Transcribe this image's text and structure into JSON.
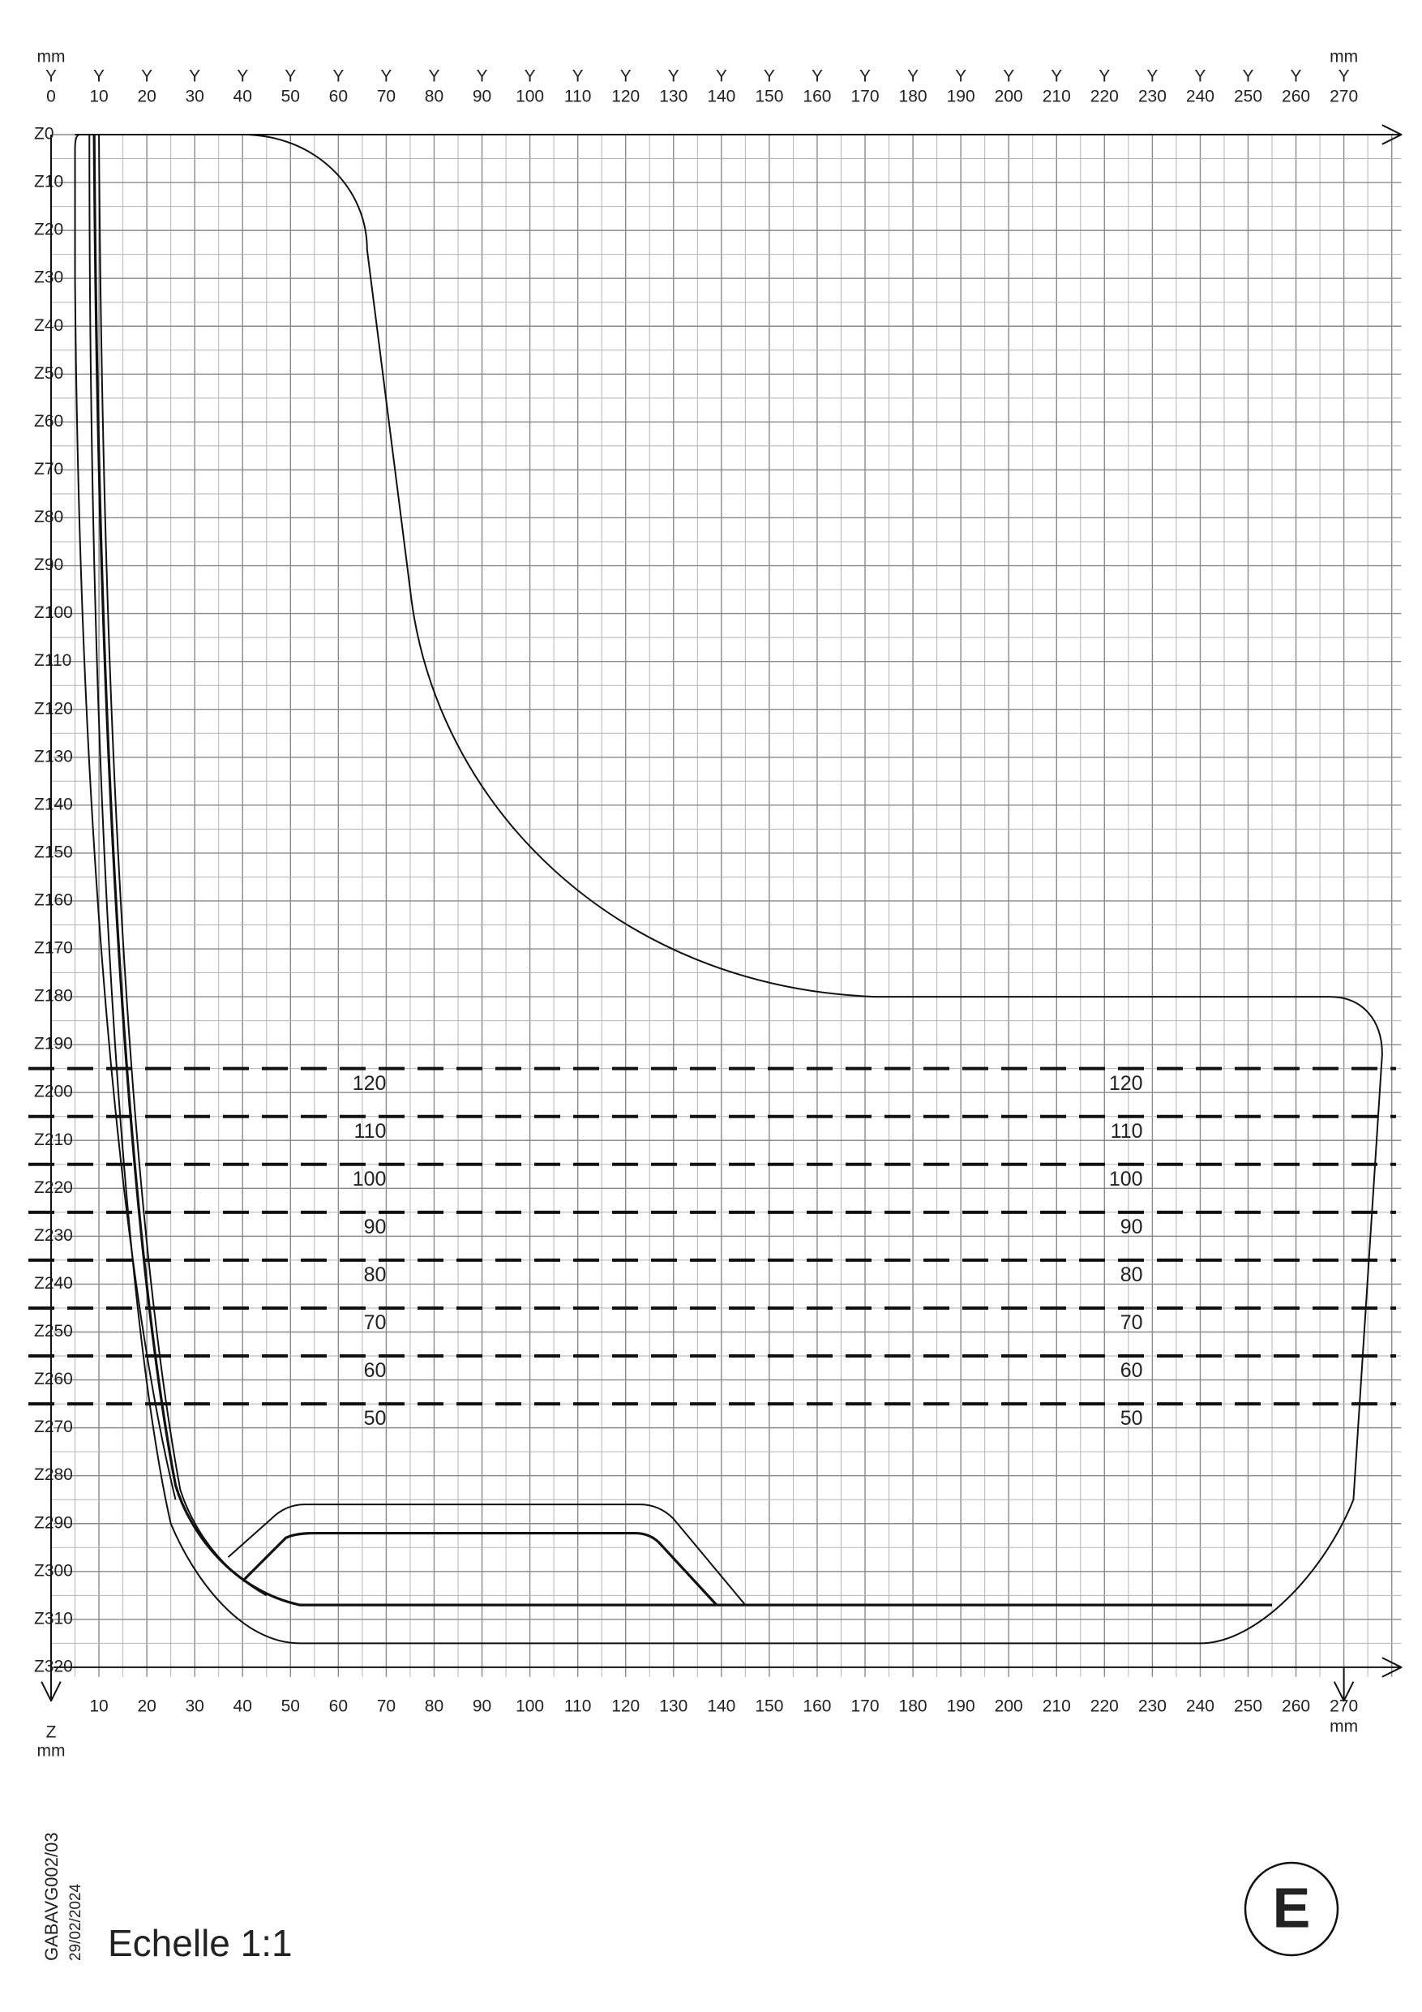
{
  "top_axis": {
    "unit": "mm",
    "letter": "Y",
    "labels": [
      0,
      10,
      20,
      30,
      40,
      50,
      60,
      70,
      80,
      90,
      100,
      110,
      120,
      130,
      140,
      150,
      160,
      170,
      180,
      190,
      200,
      210,
      220,
      230,
      240,
      250,
      260,
      270
    ]
  },
  "left_axis": {
    "labels": [
      "Z0",
      "Z10",
      "Z20",
      "Z30",
      "Z40",
      "Z50",
      "Z60",
      "Z70",
      "Z80",
      "Z90",
      "Z100",
      "Z110",
      "Z120",
      "Z130",
      "Z140",
      "Z150",
      "Z160",
      "Z170",
      "Z180",
      "Z190",
      "Z200",
      "Z210",
      "Z220",
      "Z230",
      "Z240",
      "Z250",
      "Z260",
      "Z270",
      "Z280",
      "Z290",
      "Z300",
      "Z310",
      "Z320"
    ]
  },
  "bottom_axis": {
    "letter": "Z",
    "unit": "mm",
    "labels": [
      10,
      20,
      30,
      40,
      50,
      60,
      70,
      80,
      90,
      100,
      110,
      120,
      130,
      140,
      150,
      160,
      170,
      180,
      190,
      200,
      210,
      220,
      230,
      240,
      250,
      260,
      270
    ]
  },
  "levels": {
    "labels": [
      120,
      110,
      100,
      90,
      80,
      70,
      60,
      50
    ]
  },
  "footer": {
    "reference": "GABAVG002/03",
    "date": "29/02/2024",
    "scale": "Echelle 1:1",
    "badge": "E"
  }
}
